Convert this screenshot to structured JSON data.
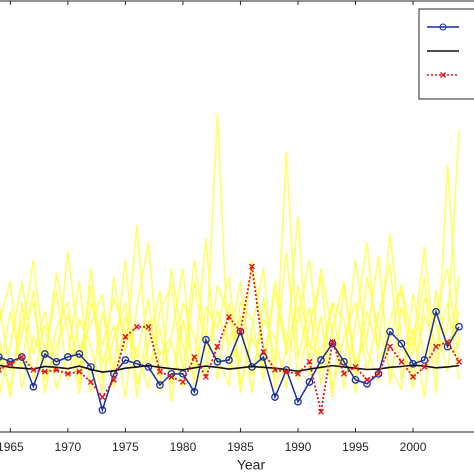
{
  "chart_data": {
    "type": "line",
    "x_label": "Year",
    "x": [
      1964,
      1965,
      1966,
      1967,
      1968,
      1969,
      1970,
      1971,
      1972,
      1973,
      1974,
      1975,
      1976,
      1977,
      1978,
      1979,
      1980,
      1981,
      1982,
      1983,
      1984,
      1985,
      1986,
      1987,
      1988,
      1989,
      1990,
      1991,
      1992,
      1993,
      1994,
      1995,
      1996,
      1997,
      1998,
      1999,
      2000,
      2001,
      2002,
      2003,
      2004
    ],
    "xlim": [
      1964.1,
      2005.3
    ],
    "xticks": [
      1965,
      1970,
      1975,
      1980,
      1985,
      1990,
      1995,
      2000
    ],
    "ylim": [
      0,
      100
    ],
    "legend": "upper right",
    "series": [
      {
        "color": "#ffff4d",
        "style": "ensemble",
        "values": [
          22,
          8,
          30,
          12,
          25,
          10,
          18,
          35,
          9,
          28,
          14,
          40,
          11,
          20,
          33,
          7,
          26,
          15,
          45,
          12,
          30,
          9,
          24,
          38,
          10,
          19,
          50,
          13,
          27,
          8,
          34,
          16,
          22,
          41,
          11,
          29,
          18,
          36,
          9,
          62,
          20
        ]
      },
      {
        "color": "#ffff4d",
        "style": "ensemble",
        "values": [
          12,
          28,
          15,
          33,
          9,
          24,
          30,
          11,
          38,
          16,
          25,
          8,
          29,
          44,
          13,
          21,
          10,
          35,
          18,
          74,
          14,
          27,
          9,
          31,
          16,
          42,
          12,
          25,
          36,
          10,
          22,
          30,
          14,
          27,
          39,
          12,
          24,
          8,
          33,
          19,
          28
        ]
      },
      {
        "color": "#ffff4d",
        "style": "ensemble",
        "values": [
          30,
          14,
          22,
          40,
          17,
          33,
          12,
          26,
          20,
          9,
          36,
          18,
          48,
          15,
          24,
          11,
          30,
          22,
          13,
          34,
          27,
          16,
          40,
          20,
          12,
          65,
          17,
          29,
          11,
          24,
          35,
          13,
          28,
          19,
          46,
          22,
          10,
          31,
          25,
          14,
          36
        ]
      },
      {
        "color": "#ffff4d",
        "style": "ensemble",
        "values": [
          8,
          20,
          35,
          18,
          28,
          14,
          42,
          19,
          25,
          32,
          10,
          27,
          17,
          31,
          9,
          38,
          20,
          12,
          29,
          24,
          36,
          11,
          22,
          15,
          33,
          18,
          26,
          40,
          14,
          30,
          10,
          25,
          44,
          17,
          21,
          33,
          12,
          27,
          20,
          30,
          12
        ]
      },
      {
        "color": "#ffff4d",
        "style": "ensemble",
        "values": [
          25,
          35,
          10,
          22,
          16,
          37,
          23,
          9,
          30,
          20,
          31,
          23,
          19,
          10,
          28,
          34,
          14,
          40,
          21,
          17,
          11,
          30,
          26,
          12,
          35,
          20,
          29,
          17,
          38,
          23,
          15,
          40,
          19,
          12,
          26,
          34,
          20,
          43,
          16,
          24,
          70
        ]
      },
      {
        "color": "#ffff4d",
        "style": "ensemble",
        "values": [
          18,
          10,
          26,
          30,
          12,
          20,
          27,
          15,
          34,
          12,
          22,
          30,
          8,
          26,
          18,
          22,
          38,
          10,
          16,
          28,
          20,
          35,
          13,
          26,
          22,
          10,
          34,
          20,
          18,
          30,
          26,
          9,
          36,
          24,
          15,
          10,
          32,
          17,
          28,
          38,
          16
        ]
      },
      {
        "color": "#1a2fa0",
        "style": "circle",
        "values": [
          17.4,
          16.3,
          17.4,
          10.5,
          18.1,
          16.3,
          17.4,
          18.1,
          15.1,
          5.1,
          13.5,
          16.7,
          15.8,
          15.1,
          10.9,
          13.5,
          13.5,
          9.3,
          21.4,
          16.3,
          16.7,
          23.3,
          15.1,
          17.4,
          8.1,
          14.4,
          7.0,
          11.6,
          16.7,
          20.5,
          16.3,
          12.1,
          11.2,
          13.5,
          23.3,
          20.5,
          15.8,
          16.7,
          27.9,
          19.8,
          24.4
        ]
      },
      {
        "color": "#111111",
        "style": "solid",
        "values": [
          15.5,
          15.0,
          14.8,
          14.6,
          15.2,
          15.0,
          14.7,
          15.3,
          14.5,
          13.9,
          14.2,
          14.8,
          15.1,
          15.4,
          15.0,
          14.7,
          14.4,
          14.9,
          15.3,
          15.0,
          14.6,
          14.9,
          15.2,
          15.0,
          14.8,
          14.5,
          14.1,
          14.6,
          15.0,
          15.4,
          15.1,
          14.8,
          14.5,
          14.6,
          15.0,
          15.2,
          15.5,
          15.3,
          14.9,
          15.1,
          15.4
        ]
      },
      {
        "color": "#e8141c",
        "style": "cross",
        "values": [
          14.4,
          15.8,
          17.4,
          14.4,
          14.0,
          14.4,
          13.5,
          14.0,
          11.6,
          8.1,
          12.1,
          22.1,
          24.4,
          24.4,
          14.0,
          12.8,
          11.6,
          17.4,
          12.8,
          19.8,
          26.7,
          23.3,
          38.4,
          18.6,
          14.4,
          14.0,
          13.5,
          16.3,
          4.7,
          20.9,
          13.5,
          15.1,
          12.1,
          13.5,
          19.8,
          16.3,
          12.8,
          15.1,
          19.8,
          20.9,
          16.3
        ]
      }
    ]
  }
}
